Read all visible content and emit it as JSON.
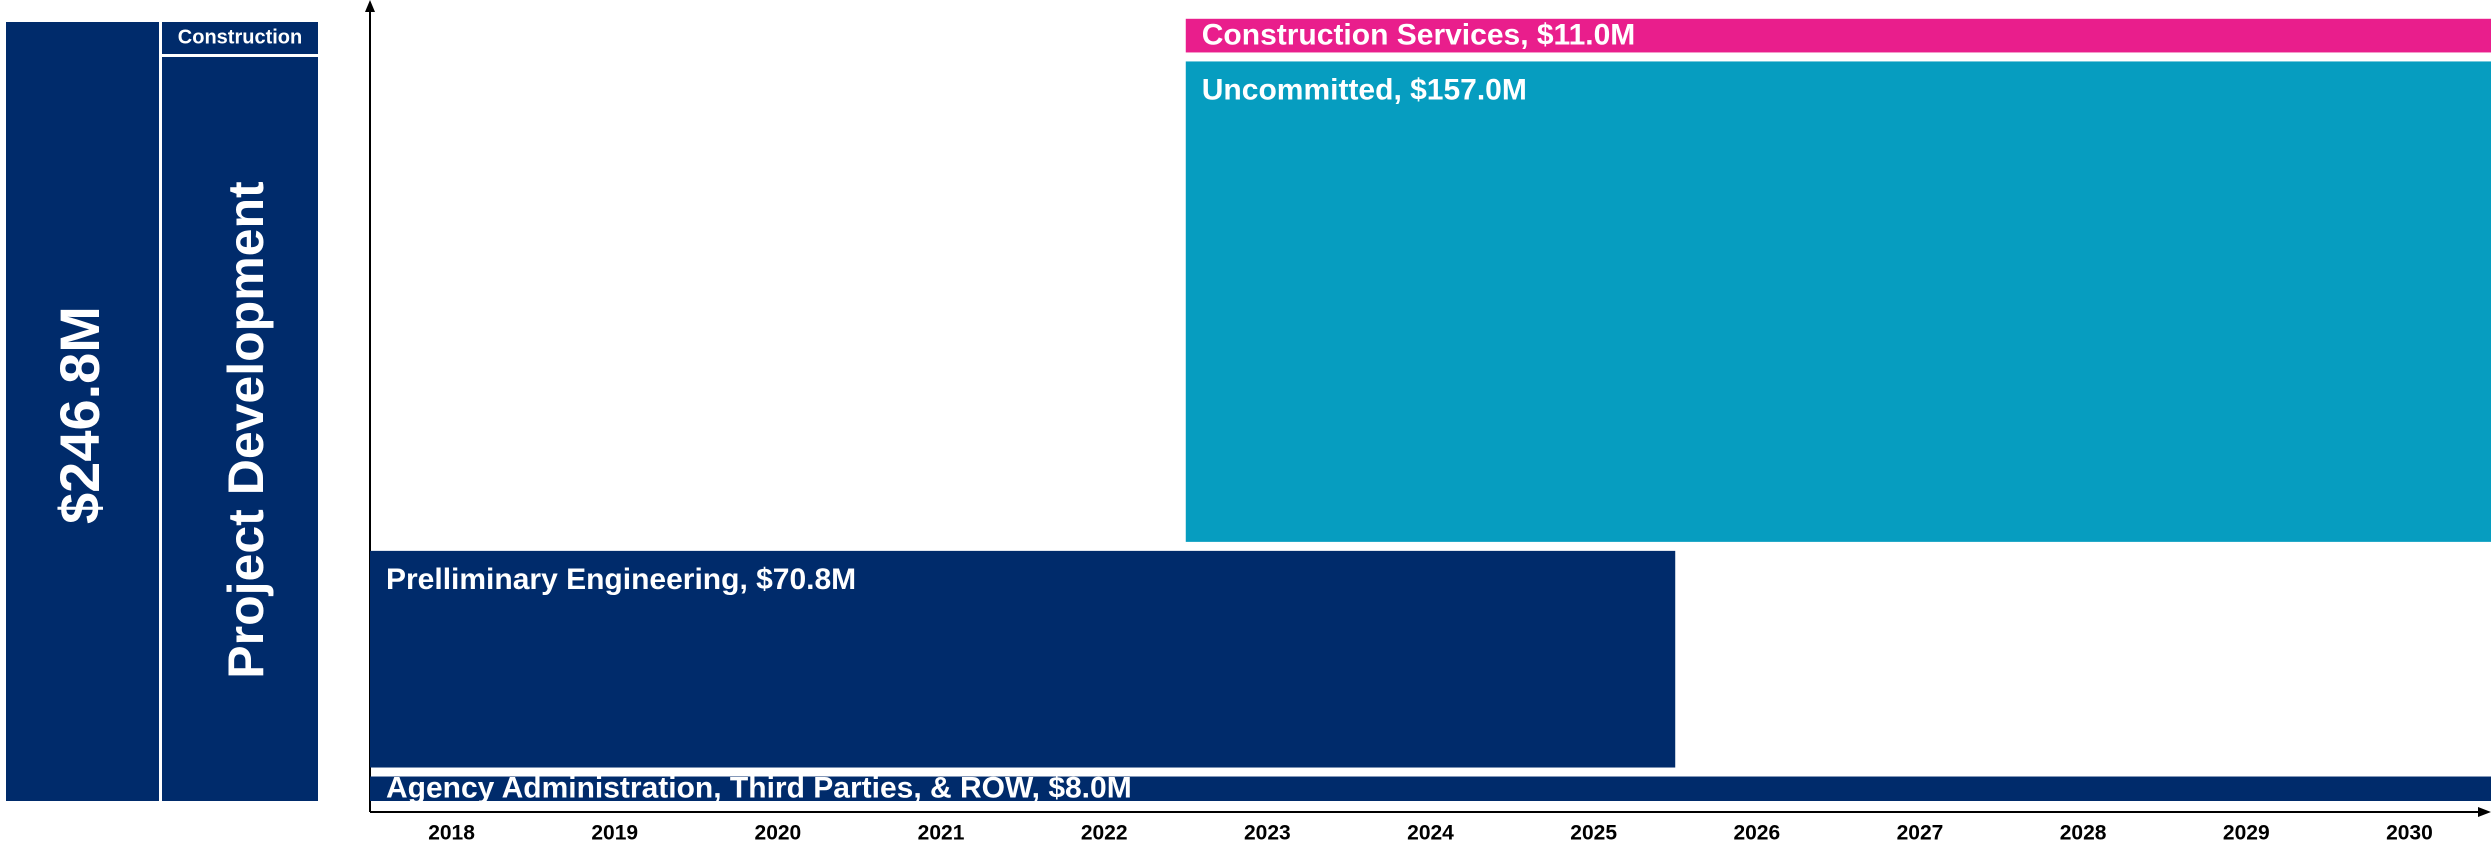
{
  "left_panel": {
    "total": "$246.8M",
    "phase": "Project Development",
    "header": "Construction"
  },
  "chart_data": {
    "type": "gantt",
    "xlim": [
      2017.5,
      2030.5
    ],
    "xticks": [
      2018,
      2019,
      2020,
      2021,
      2022,
      2023,
      2024,
      2025,
      2026,
      2027,
      2028,
      2029,
      2030
    ],
    "tasks": [
      {
        "label": "Agency Administration, Third Parties, & ROW, $8.0M",
        "value": 8,
        "start": 2017.5,
        "end": 2030.5,
        "color": "#002b6b"
      },
      {
        "label": "Prelliminary Engineering, $70.8M",
        "value": 70.8,
        "start": 2017.5,
        "end": 2025.5,
        "color": "#002b6b"
      },
      {
        "label": "Uncommitted, $157.0M",
        "value": 157,
        "start": 2022.5,
        "end": 2030.5,
        "color": "#069dc0"
      },
      {
        "label": "Construction Services, $11.0M",
        "value": 11,
        "start": 2022.5,
        "end": 2030.5,
        "color": "#e91e8c"
      }
    ]
  }
}
